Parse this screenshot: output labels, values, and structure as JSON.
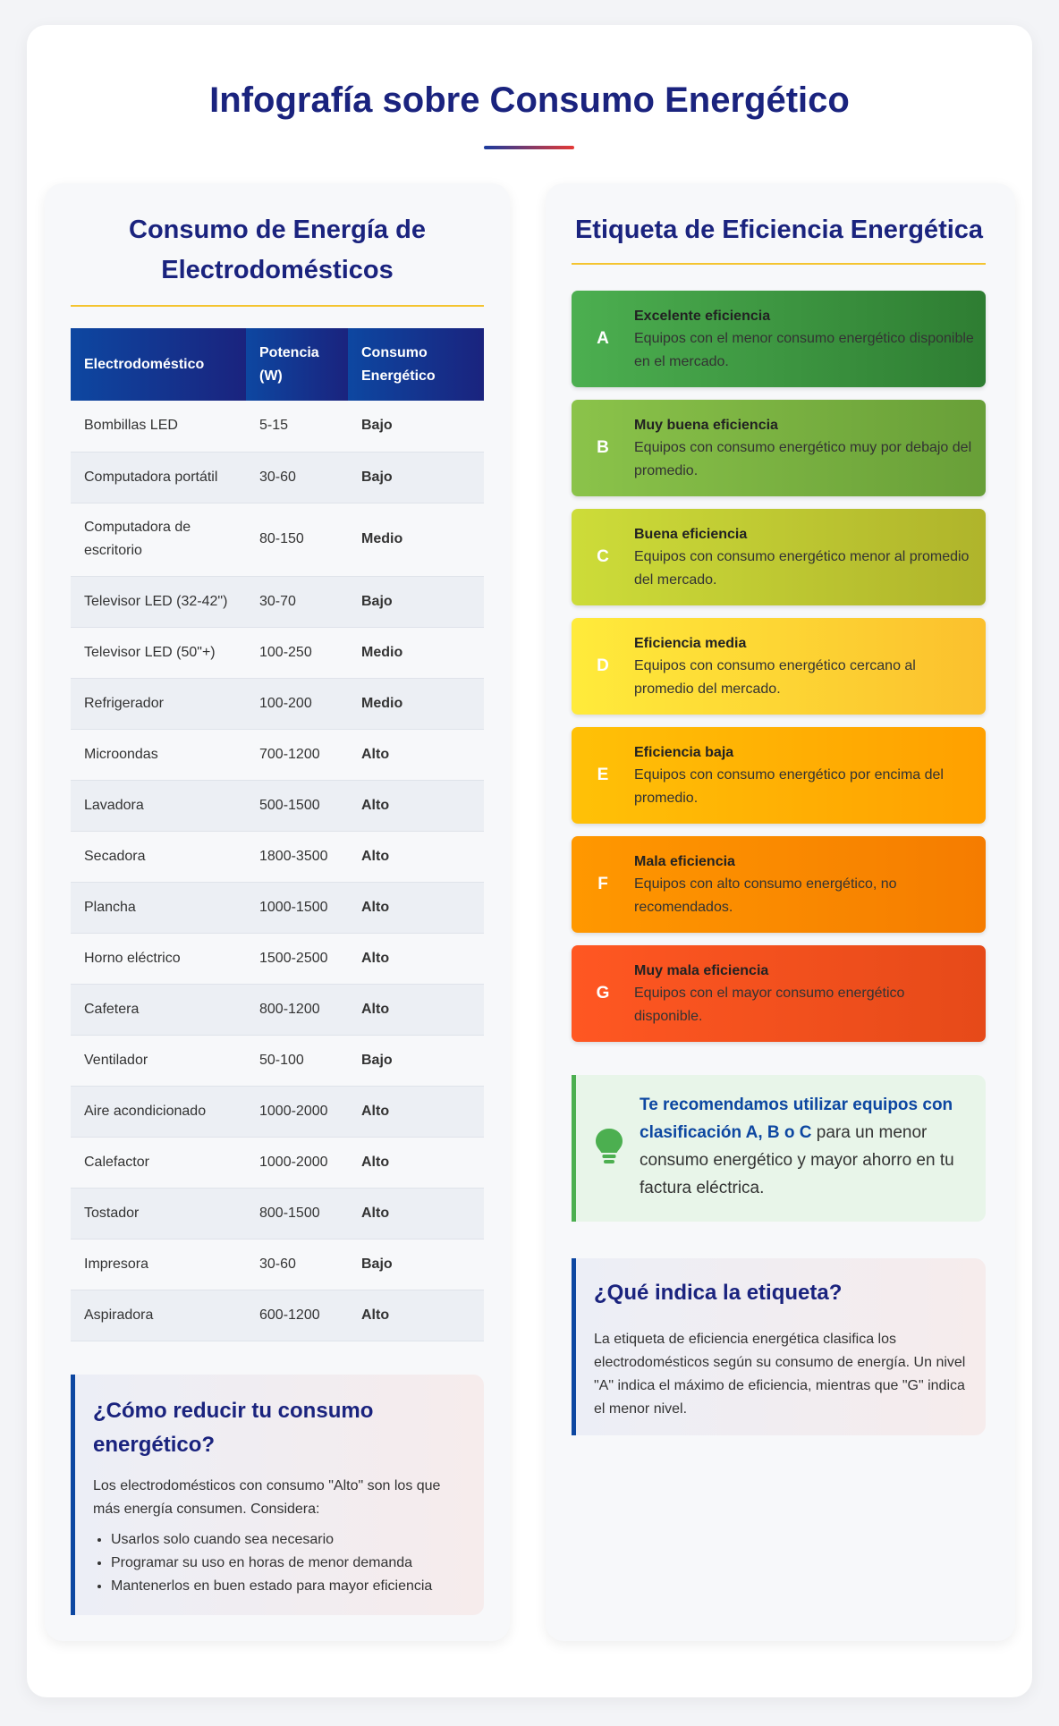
{
  "title": "Infografía sobre Consumo Energético",
  "appliances": {
    "title": "Consumo de Energía de Electrodomésticos",
    "columns": [
      "Electrodoméstico",
      "Potencia (W)",
      "Consumo Energético"
    ],
    "rows": [
      {
        "name": "Bombillas LED",
        "power": "5-15",
        "level": "Bajo"
      },
      {
        "name": "Computadora portátil",
        "power": "30-60",
        "level": "Bajo"
      },
      {
        "name": "Computadora de escritorio",
        "power": "80-150",
        "level": "Medio"
      },
      {
        "name": "Televisor LED (32-42\")",
        "power": "30-70",
        "level": "Bajo"
      },
      {
        "name": "Televisor LED (50\"+)",
        "power": "100-250",
        "level": "Medio"
      },
      {
        "name": "Refrigerador",
        "power": "100-200",
        "level": "Medio"
      },
      {
        "name": "Microondas",
        "power": "700-1200",
        "level": "Alto"
      },
      {
        "name": "Lavadora",
        "power": "500-1500",
        "level": "Alto"
      },
      {
        "name": "Secadora",
        "power": "1800-3500",
        "level": "Alto"
      },
      {
        "name": "Plancha",
        "power": "1000-1500",
        "level": "Alto"
      },
      {
        "name": "Horno eléctrico",
        "power": "1500-2500",
        "level": "Alto"
      },
      {
        "name": "Cafetera",
        "power": "800-1200",
        "level": "Alto"
      },
      {
        "name": "Ventilador",
        "power": "50-100",
        "level": "Bajo"
      },
      {
        "name": "Aire acondicionado",
        "power": "1000-2000",
        "level": "Alto"
      },
      {
        "name": "Calefactor",
        "power": "1000-2000",
        "level": "Alto"
      },
      {
        "name": "Tostador",
        "power": "800-1500",
        "level": "Alto"
      },
      {
        "name": "Impresora",
        "power": "30-60",
        "level": "Bajo"
      },
      {
        "name": "Aspiradora",
        "power": "600-1200",
        "level": "Alto"
      }
    ],
    "level_colors": {
      "Bajo": "#43a047",
      "Medio": "#f4b400",
      "Alto": "#e53935"
    }
  },
  "tips": {
    "title": "¿Cómo reducir tu consumo energético?",
    "intro": "Los electrodomésticos con consumo \"Alto\" son los que más energía consumen. Considera:",
    "items": [
      "Usarlos solo cuando sea necesario",
      "Programar su uso en horas de menor demanda",
      "Mantenerlos en buen estado para mayor eficiencia"
    ]
  },
  "efficiency": {
    "title": "Etiqueta de Eficiencia Energética",
    "labels": [
      {
        "letter": "A",
        "title": "Excelente eficiencia",
        "desc": "Equipos con el menor consumo energético disponible en el mercado."
      },
      {
        "letter": "B",
        "title": "Muy buena eficiencia",
        "desc": "Equipos con consumo energético muy por debajo del promedio."
      },
      {
        "letter": "C",
        "title": "Buena eficiencia",
        "desc": "Equipos con consumo energético menor al promedio del mercado."
      },
      {
        "letter": "D",
        "title": "Eficiencia media",
        "desc": "Equipos con consumo energético cercano al promedio del mercado."
      },
      {
        "letter": "E",
        "title": "Eficiencia baja",
        "desc": "Equipos con consumo energético por encima del promedio."
      },
      {
        "letter": "F",
        "title": "Mala eficiencia",
        "desc": "Equipos con alto consumo energético, no recomendados."
      },
      {
        "letter": "G",
        "title": "Muy mala eficiencia",
        "desc": "Equipos con el mayor consumo energético disponible."
      }
    ],
    "recommendation": {
      "icon": "lightbulb-icon",
      "highlight": "Te recomendamos utilizar equipos con clasificación A, B o C",
      "rest": " para un menor consumo energético y mayor ahorro en tu factura eléctrica."
    },
    "what_is": {
      "title": "¿Qué indica la etiqueta?",
      "text": "La etiqueta de eficiencia energética clasifica los electrodomésticos según su consumo de energía. Un nivel \"A\" indica el máximo de eficiencia, mientras que \"G\" indica el menor nivel."
    }
  }
}
